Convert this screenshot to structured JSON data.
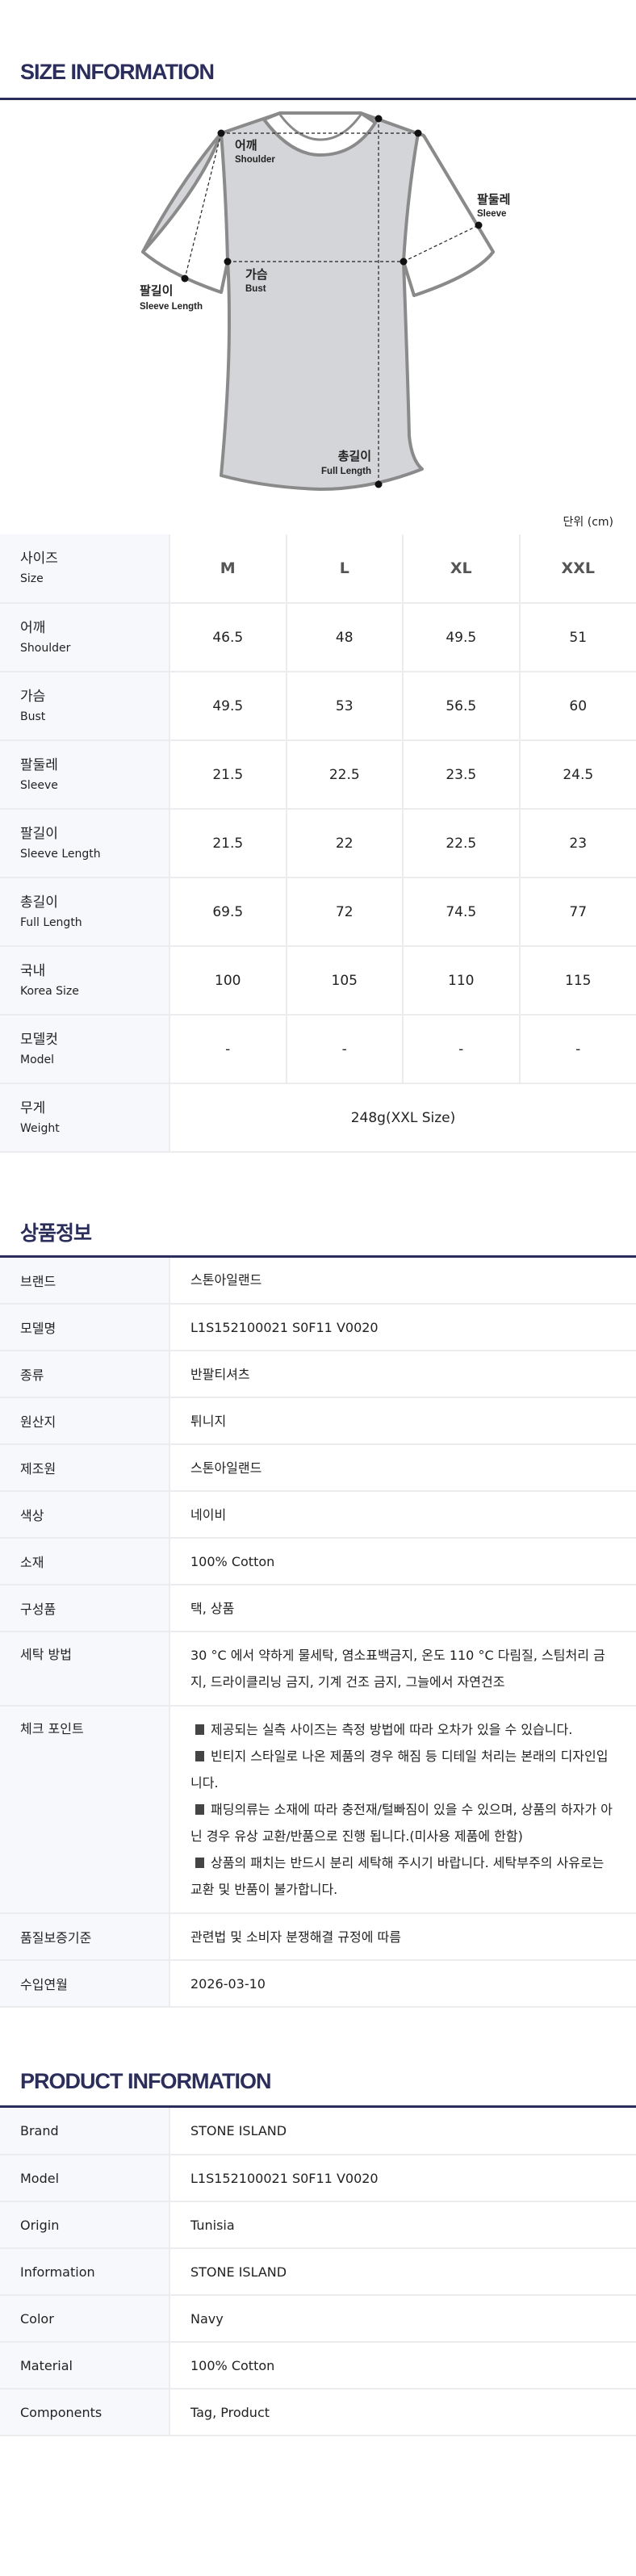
{
  "size_info": {
    "title": "SIZE INFORMATION",
    "unit": "단위 (cm)",
    "diagram_labels": {
      "shoulder": {
        "ko": "어깨",
        "en": "Shoulder"
      },
      "sleeve": {
        "ko": "팔둘레",
        "en": "Sleeve"
      },
      "bust": {
        "ko": "가슴",
        "en": "Bust"
      },
      "sleeve_length": {
        "ko": "팔길이",
        "en": "Sleeve Length"
      },
      "full_length": {
        "ko": "총길이",
        "en": "Full Length"
      }
    },
    "header": {
      "ko": "사이즈",
      "en": "Size",
      "sizes": [
        "M",
        "L",
        "XL",
        "XXL"
      ]
    },
    "rows": [
      {
        "ko": "어깨",
        "en": "Shoulder",
        "values": [
          "46.5",
          "48",
          "49.5",
          "51"
        ]
      },
      {
        "ko": "가슴",
        "en": "Bust",
        "values": [
          "49.5",
          "53",
          "56.5",
          "60"
        ]
      },
      {
        "ko": "팔둘레",
        "en": "Sleeve",
        "values": [
          "21.5",
          "22.5",
          "23.5",
          "24.5"
        ]
      },
      {
        "ko": "팔길이",
        "en": "Sleeve Length",
        "values": [
          "21.5",
          "22",
          "22.5",
          "23"
        ]
      },
      {
        "ko": "총길이",
        "en": "Full Length",
        "values": [
          "69.5",
          "72",
          "74.5",
          "77"
        ]
      },
      {
        "ko": "국내",
        "en": "Korea Size",
        "values": [
          "100",
          "105",
          "110",
          "115"
        ]
      },
      {
        "ko": "모델컷",
        "en": "Model",
        "values": [
          "-",
          "-",
          "-",
          "-"
        ]
      }
    ],
    "weight": {
      "ko": "무게",
      "en": "Weight",
      "value": "248g(XXL Size)"
    }
  },
  "product_ko": {
    "title": "상품정보",
    "rows": [
      {
        "label": "브랜드",
        "value": "스톤아일랜드"
      },
      {
        "label": "모델명",
        "value": "L1S152100021 S0F11 V0020"
      },
      {
        "label": "종류",
        "value": "반팔티셔츠"
      },
      {
        "label": "원산지",
        "value": "튀니지"
      },
      {
        "label": "제조원",
        "value": "스톤아일랜드"
      },
      {
        "label": "색상",
        "value": "네이비"
      },
      {
        "label": "소재",
        "value": "100% Cotton"
      },
      {
        "label": "구성품",
        "value": "택, 상품"
      },
      {
        "label": "세탁 방법",
        "value": "30 °C 에서 약하게 물세탁, 염소표백금지, 온도 110 °C 다림질, 스팀처리 금지, 드라이클리닝 금지, 기계 건조 금지, 그늘에서 자연건조"
      }
    ],
    "checkpoint": {
      "label": "체크 포인트",
      "items": [
        "제공되는 실측 사이즈는 측정 방법에 따라 오차가 있을 수 있습니다.",
        "빈티지 스타일로 나온 제품의 경우 해짐 등 디테일 처리는 본래의 디자인입니다.",
        "패딩의류는 소재에 따라 충전재/털빠짐이 있을 수 있으며, 상품의 하자가 아닌 경우 유상 교환/반품으로 진행 됩니다.(미사용 제품에 한함)",
        "상품의 패치는 반드시 분리 세탁해 주시기 바랍니다. 세탁부주의 사유로는 교환 및 반품이 불가합니다."
      ]
    },
    "rows_after": [
      {
        "label": "품질보증기준",
        "value": "관련법 및 소비자 분쟁해결 규정에 따름"
      },
      {
        "label": "수입연월",
        "value": "2026-03-10"
      }
    ]
  },
  "product_en": {
    "title": "PRODUCT INFORMATION",
    "rows": [
      {
        "label": "Brand",
        "value": "STONE ISLAND"
      },
      {
        "label": "Model",
        "value": "L1S152100021 S0F11 V0020"
      },
      {
        "label": "Origin",
        "value": "Tunisia"
      },
      {
        "label": "Information",
        "value": "STONE ISLAND"
      },
      {
        "label": "Color",
        "value": "Navy"
      },
      {
        "label": "Material",
        "value": "100% Cotton"
      },
      {
        "label": "Components",
        "value": "Tag, Product"
      }
    ]
  },
  "colors": {
    "accent": "#2b2d5b",
    "label_bg": "#f7f8fc",
    "shirt_fill": "#d4d5d8",
    "shirt_stroke": "#8a8a8a"
  }
}
